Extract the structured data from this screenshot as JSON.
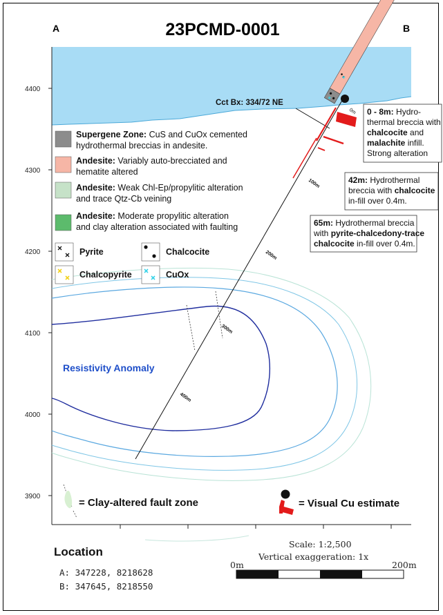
{
  "title": "23PCMD-0001",
  "section": {
    "left_label": "A",
    "right_label": "B"
  },
  "y_axis": {
    "ticks": [
      "4400",
      "4300",
      "4200",
      "4100",
      "4000",
      "3900"
    ]
  },
  "collar_label": "Cct Bx: 334/72 NE",
  "depth_labels": [
    "0m",
    "100m",
    "200m",
    "300m",
    "400m"
  ],
  "anomaly_label": "Resistivity Anomaly",
  "legend": {
    "zones": [
      {
        "name": "Supergene Zone:",
        "desc_line1": " CuS and CuOx cemented",
        "desc_line2": "hydrothermal breccias in andesite.",
        "color": "#8c8c8c"
      },
      {
        "name": "Andesite:",
        "desc_line1": " Variably auto-brecciated and",
        "desc_line2": "hematite altered",
        "color": "#f6b6a6"
      },
      {
        "name": "Andesite:",
        "desc_line1": " Weak Chl-Ep/propylitic alteration",
        "desc_line2": "and trace Qtz-Cb veining",
        "color": "#c6e2c8"
      },
      {
        "name": "Andesite:",
        "desc_line1": " Moderate propylitic alteration",
        "desc_line2": "and clay alteration associated with faulting",
        "color": "#5cbb6c"
      }
    ],
    "minerals": [
      "Pyrite",
      "Chalcocite",
      "Chalcopyrite",
      "CuOx"
    ],
    "fault_key": "= Clay-altered fault zone",
    "cu_key": "= Visual Cu estimate"
  },
  "notes": [
    {
      "lines": [
        [
          {
            "t": "0 - 8m:",
            "b": true
          },
          {
            "t": " Hydro-",
            "b": false
          }
        ],
        [
          {
            "t": "thermal breccia with",
            "b": false
          }
        ],
        [
          {
            "t": "chalcocite",
            "b": true
          },
          {
            "t": " and",
            "b": false
          }
        ],
        [
          {
            "t": "malachite",
            "b": true
          },
          {
            "t": " infill.",
            "b": false
          }
        ],
        [
          {
            "t": "Strong alteration",
            "b": false
          }
        ]
      ]
    },
    {
      "lines": [
        [
          {
            "t": "42m:",
            "b": true
          },
          {
            "t": " Hydrothermal",
            "b": false
          }
        ],
        [
          {
            "t": "breccia with ",
            "b": false
          },
          {
            "t": "chalcocite",
            "b": true
          }
        ],
        [
          {
            "t": "in-fill over 0.4m.",
            "b": false
          }
        ]
      ]
    },
    {
      "lines": [
        [
          {
            "t": "65m:",
            "b": true
          },
          {
            "t": " Hydrothermal breccia",
            "b": false
          }
        ],
        [
          {
            "t": "with ",
            "b": false
          },
          {
            "t": "pyrite-chalcedony-trace",
            "b": true
          }
        ],
        [
          {
            "t": "chalcocite",
            "b": true
          },
          {
            "t": " in-fill over 0.4m.",
            "b": false
          }
        ]
      ]
    }
  ],
  "location": {
    "title": "Location",
    "a": "A:  347228, 8218628",
    "b": "B:  347645, 8218550"
  },
  "scale": {
    "text": "Scale: 1:2,500",
    "vertical": "Vertical exaggeration: 1x",
    "start": "0m",
    "end": "200m"
  }
}
